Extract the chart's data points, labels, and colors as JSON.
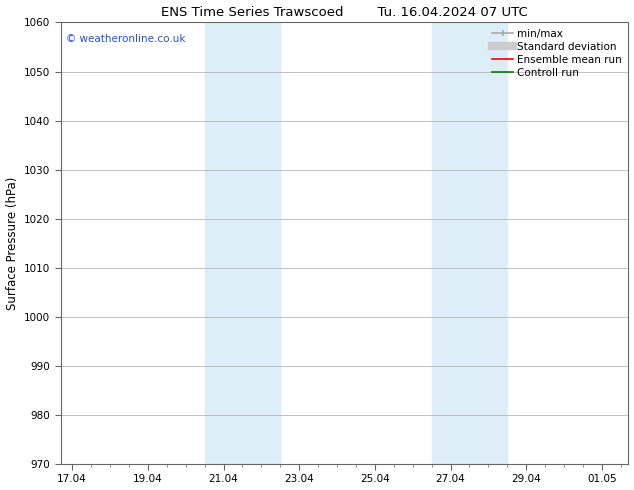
{
  "title_left": "ENS Time Series Trawscoed",
  "title_right": "Tu. 16.04.2024 07 UTC",
  "ylabel": "Surface Pressure (hPa)",
  "ylim": [
    970,
    1060
  ],
  "yticks": [
    970,
    980,
    990,
    1000,
    1010,
    1020,
    1030,
    1040,
    1050,
    1060
  ],
  "xtick_labels": [
    "17.04",
    "19.04",
    "21.04",
    "23.04",
    "25.04",
    "27.04",
    "29.04",
    "01.05"
  ],
  "xtick_positions": [
    0,
    2,
    4,
    6,
    8,
    10,
    12,
    14
  ],
  "xmin": -0.3,
  "xmax": 14.7,
  "shaded_bands": [
    {
      "x_start": 3.5,
      "x_end": 5.5
    },
    {
      "x_start": 9.5,
      "x_end": 11.5
    }
  ],
  "shaded_color": "#ddeef8",
  "watermark_text": "© weatheronline.co.uk",
  "watermark_color": "#2255cc",
  "legend_items": [
    {
      "label": "min/max",
      "color": "#aaaaaa",
      "lw": 1.2,
      "ls": "-",
      "marker": "|"
    },
    {
      "label": "Standard deviation",
      "color": "#cccccc",
      "lw": 6,
      "ls": "-",
      "marker": "none"
    },
    {
      "label": "Ensemble mean run",
      "color": "#ff0000",
      "lw": 1.2,
      "ls": "-",
      "marker": "none"
    },
    {
      "label": "Controll run",
      "color": "#008000",
      "lw": 1.2,
      "ls": "-",
      "marker": "none"
    }
  ],
  "background_color": "#ffffff",
  "grid_color": "#aaaaaa",
  "spine_color": "#666666",
  "title_fontsize": 9.5,
  "label_fontsize": 8.5,
  "tick_fontsize": 7.5,
  "legend_fontsize": 7.5,
  "watermark_fontsize": 7.5
}
